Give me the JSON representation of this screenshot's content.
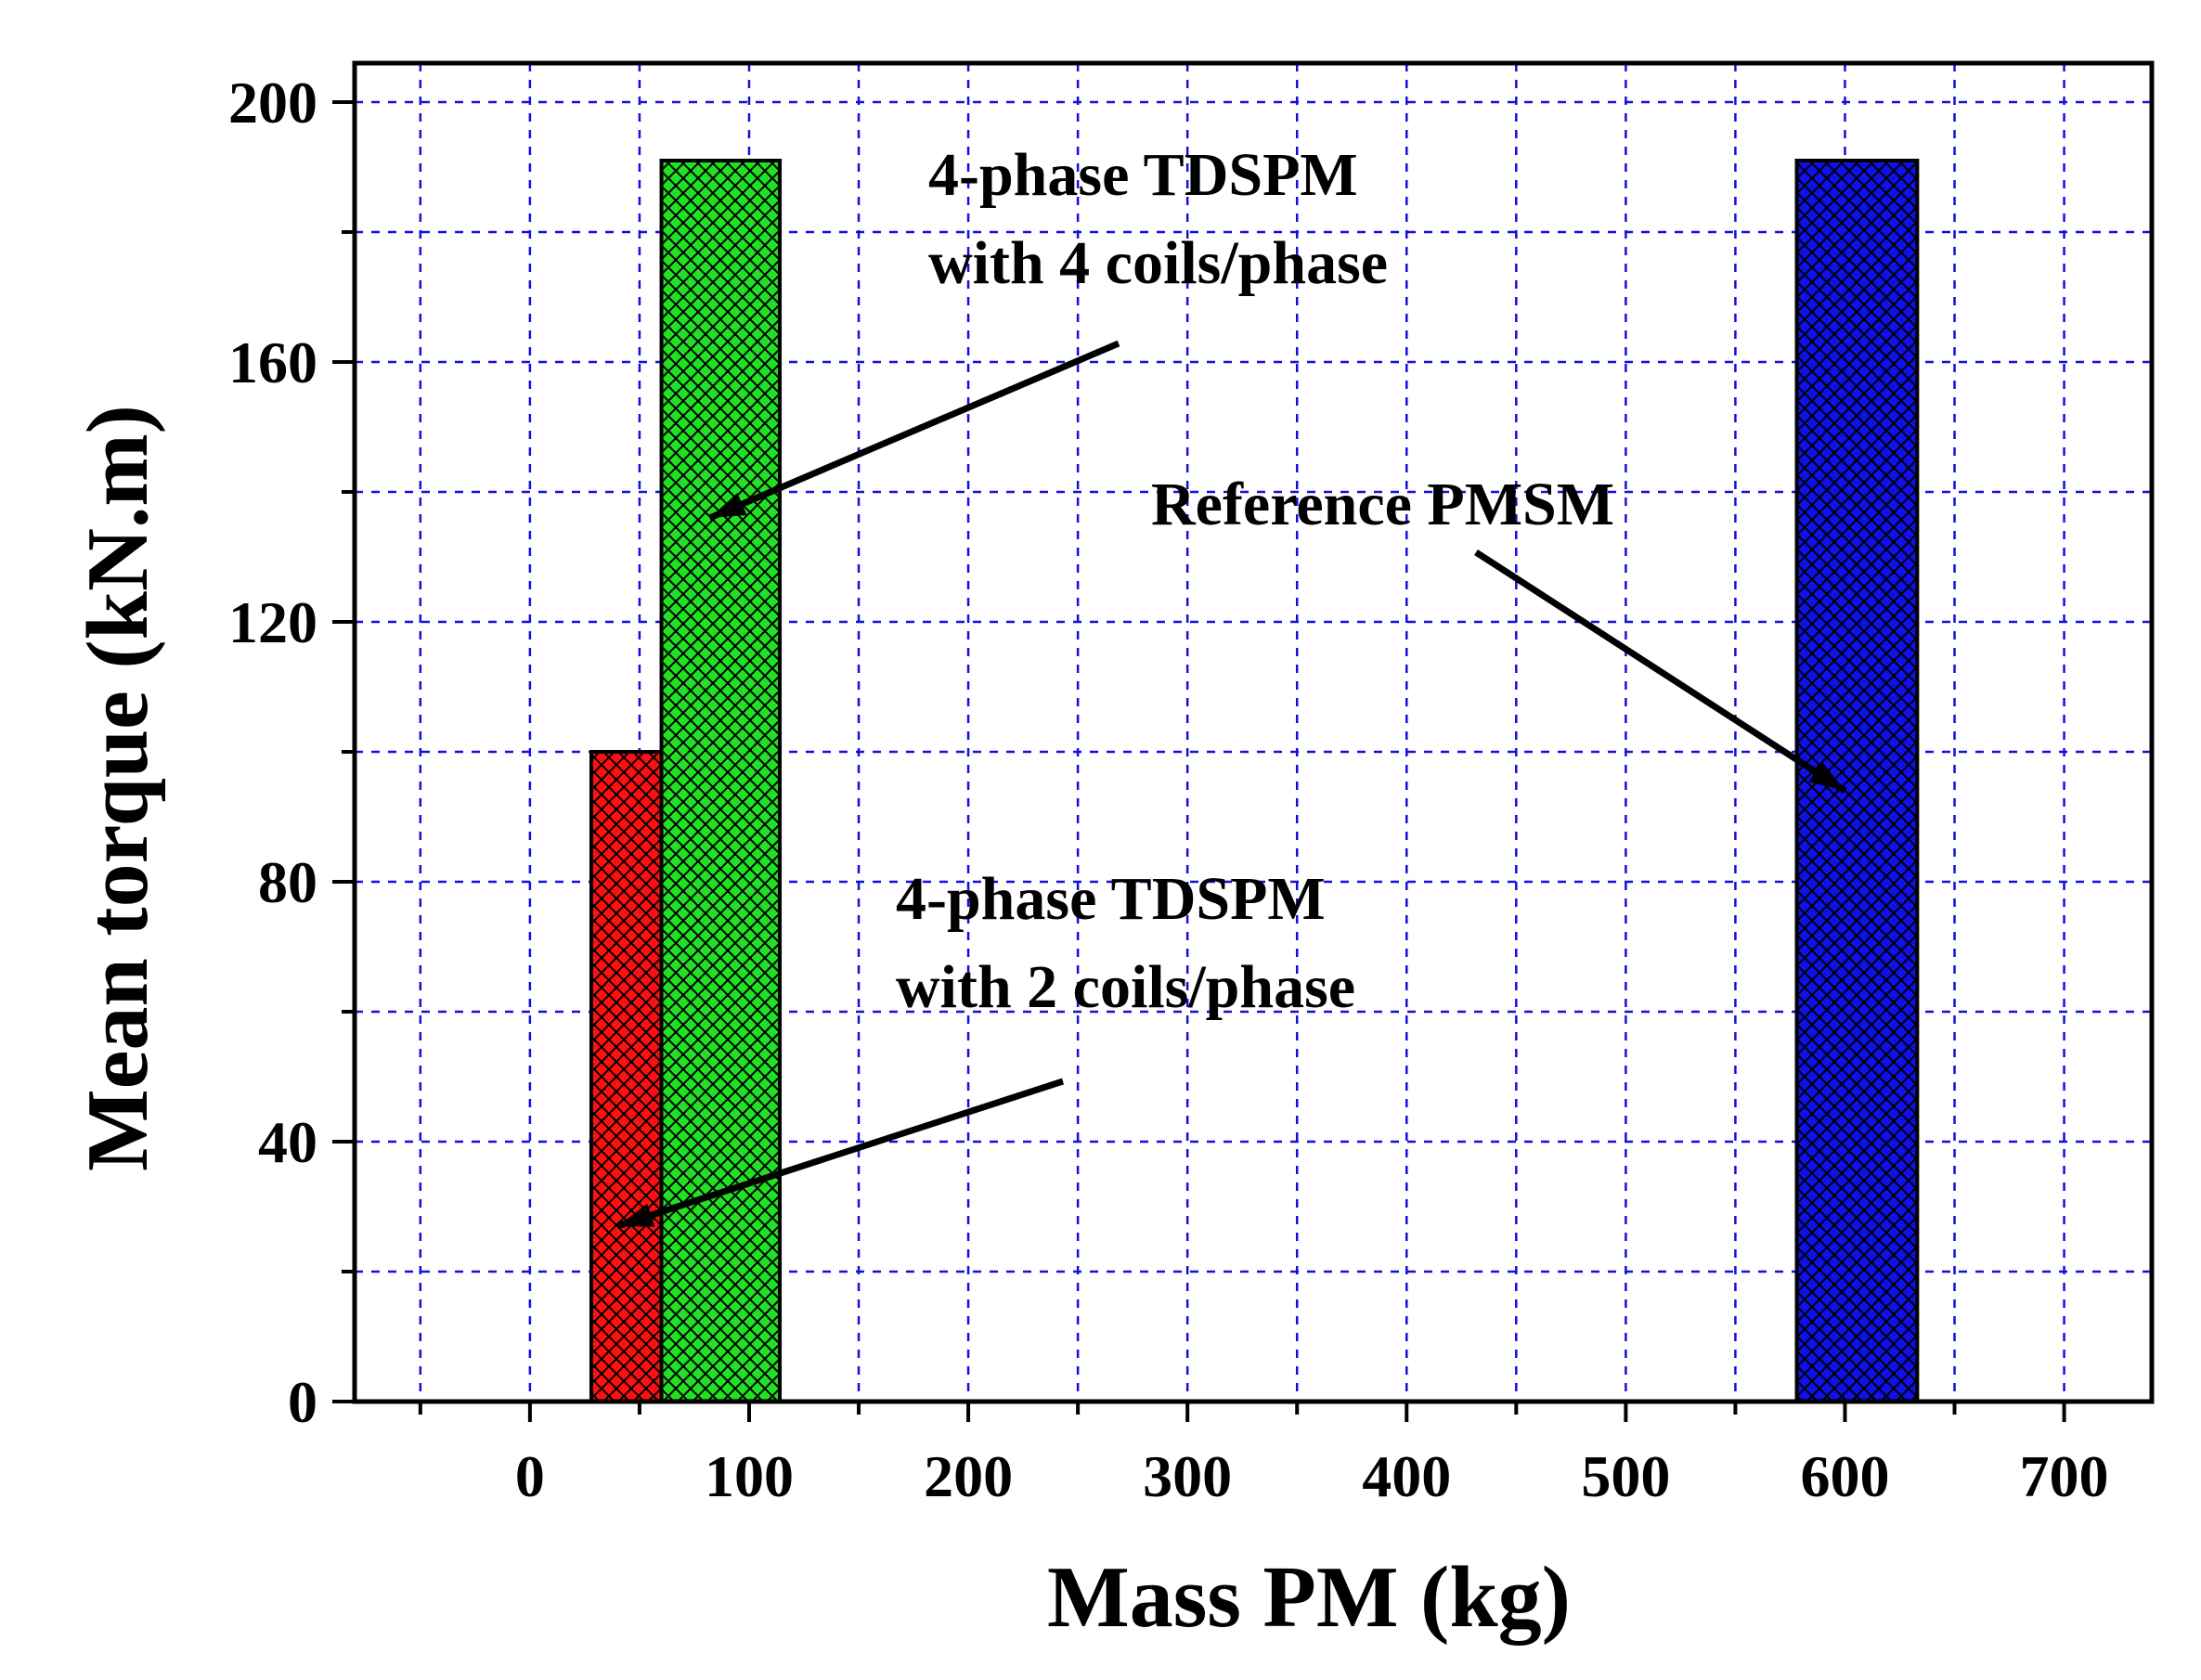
{
  "chart_data": {
    "type": "bar",
    "title": "",
    "xlabel": "Mass PM (kg)",
    "ylabel": "Mean torque (kN.m)",
    "xlim": [
      -80,
      740
    ],
    "ylim": [
      0,
      206
    ],
    "xticks": [
      0,
      100,
      200,
      300,
      400,
      500,
      600,
      700
    ],
    "yticks": [
      0,
      40,
      80,
      120,
      160,
      200
    ],
    "grid": true,
    "bars": [
      {
        "name": "4-phase TDSPM with 2 coils/phase",
        "x_start": 28,
        "x_end": 60,
        "value": 100,
        "color": "#ff1010"
      },
      {
        "name": "4-phase TDSPM with 4 coils/phase",
        "x_start": 60,
        "x_end": 114,
        "value": 191,
        "color": "#22e022"
      },
      {
        "name": "Reference PMSM",
        "x_start": 578,
        "x_end": 633,
        "value": 191,
        "color": "#1010e8"
      }
    ],
    "annotations": [
      {
        "lines": [
          "4-phase TDSPM",
          "with 4 coils/phase"
        ],
        "arrow_to": [
          82,
          136
        ]
      },
      {
        "lines": [
          "Reference PMSM"
        ],
        "arrow_to": [
          600,
          94
        ]
      },
      {
        "lines": [
          "4-phase TDSPM",
          "with 2 coils/phase"
        ],
        "arrow_to": [
          40,
          27
        ]
      }
    ]
  }
}
